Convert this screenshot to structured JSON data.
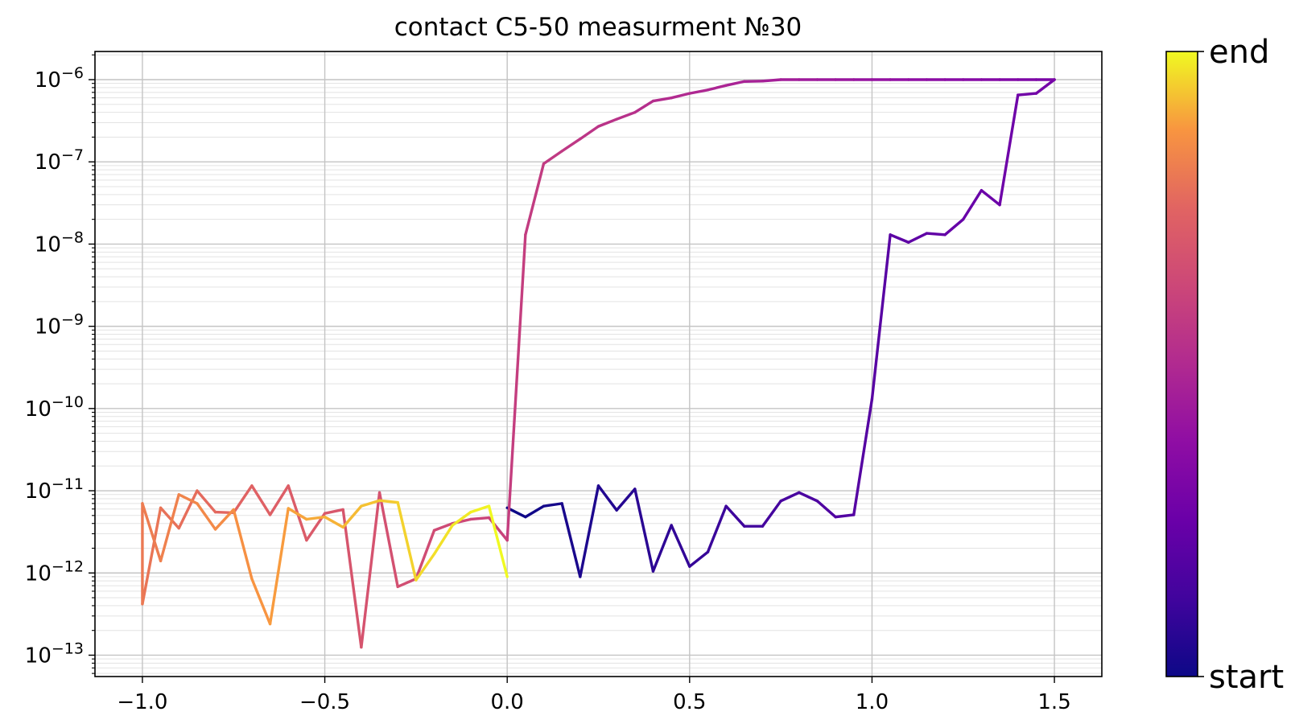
{
  "chart_data": {
    "type": "line",
    "title": "contact C5-50 measurment №30",
    "xlabel": "",
    "ylabel": "",
    "yscale": "log",
    "grid": true,
    "minor_grid": true,
    "xlim": [
      -1.13,
      1.63
    ],
    "ylim": [
      5.5e-14,
      2.2e-06
    ],
    "x_ticks": [
      {
        "value": -1.0,
        "label": "−1.0"
      },
      {
        "value": -0.5,
        "label": "−0.5"
      },
      {
        "value": 0.0,
        "label": "0.0"
      },
      {
        "value": 0.5,
        "label": "0.5"
      },
      {
        "value": 1.0,
        "label": "1.0"
      },
      {
        "value": 1.5,
        "label": "1.5"
      }
    ],
    "y_ticks": [
      {
        "exp": -6,
        "base": "10",
        "sup": "−6"
      },
      {
        "exp": -7,
        "base": "10",
        "sup": "−7"
      },
      {
        "exp": -8,
        "base": "10",
        "sup": "−8"
      },
      {
        "exp": -9,
        "base": "10",
        "sup": "−9"
      },
      {
        "exp": -10,
        "base": "10",
        "sup": "−10"
      },
      {
        "exp": -11,
        "base": "10",
        "sup": "−11"
      },
      {
        "exp": -12,
        "base": "10",
        "sup": "−12"
      },
      {
        "exp": -13,
        "base": "10",
        "sup": "−13"
      }
    ],
    "colormap": "plasma",
    "colorbar": {
      "top_label": "end",
      "bottom_label": "start"
    },
    "series": [
      {
        "x": [
          0.0,
          0.05,
          0.1,
          0.15,
          0.2,
          0.25,
          0.3,
          0.35,
          0.4,
          0.45,
          0.5,
          0.55,
          0.6,
          0.65,
          0.7,
          0.75,
          0.8,
          0.85,
          0.9,
          0.95,
          1.0,
          1.05,
          1.1,
          1.15,
          1.2,
          1.25,
          1.3,
          1.35,
          1.4,
          1.45,
          1.5
        ],
        "y": [
          6.2e-12,
          4.8e-12,
          6.5e-12,
          7e-12,
          9e-13,
          1.15e-11,
          5.8e-12,
          1.05e-11,
          1.05e-12,
          3.8e-12,
          1.2e-12,
          1.8e-12,
          6.5e-12,
          3.7e-12,
          3.7e-12,
          7.5e-12,
          9.5e-12,
          7.5e-12,
          4.8e-12,
          5.1e-12,
          1.3e-10,
          1.3e-08,
          1.05e-08,
          1.35e-08,
          1.3e-08,
          2e-08,
          4.5e-08,
          3e-08,
          6.5e-07,
          6.8e-07,
          1e-06
        ]
      },
      {
        "x": [
          1.5,
          1.45,
          1.4,
          1.35,
          1.3,
          1.25,
          1.2,
          1.15,
          1.1,
          1.05,
          1.0,
          0.95,
          0.9,
          0.85,
          0.8,
          0.75,
          0.7,
          0.65,
          0.6,
          0.55,
          0.5,
          0.45,
          0.4,
          0.35,
          0.3,
          0.25,
          0.2,
          0.15,
          0.1,
          0.05,
          0.0
        ],
        "y": [
          1e-06,
          1e-06,
          1e-06,
          1e-06,
          1e-06,
          1e-06,
          1e-06,
          1e-06,
          1e-06,
          1e-06,
          1e-06,
          1e-06,
          1e-06,
          1e-06,
          1e-06,
          1e-06,
          9.6e-07,
          9.5e-07,
          8.5e-07,
          7.5e-07,
          6.8e-07,
          6e-07,
          5.5e-07,
          4e-07,
          3.3e-07,
          2.7e-07,
          1.9e-07,
          1.35e-07,
          9.5e-08,
          1.3e-08,
          2.5e-12
        ]
      },
      {
        "x": [
          0.0,
          -0.05,
          -0.1,
          -0.15,
          -0.2,
          -0.25,
          -0.3,
          -0.35,
          -0.4,
          -0.45,
          -0.5,
          -0.55,
          -0.6,
          -0.65,
          -0.7,
          -0.75,
          -0.8,
          -0.85,
          -0.9,
          -0.95,
          -1.0
        ],
        "y": [
          2.5e-12,
          4.7e-12,
          4.5e-12,
          4e-12,
          3.3e-12,
          8.5e-13,
          6.8e-13,
          9.5e-12,
          1.25e-13,
          5.9e-12,
          5.3e-12,
          2.5e-12,
          1.15e-11,
          5.1e-12,
          1.15e-11,
          5.4e-12,
          5.5e-12,
          1e-11,
          3.5e-12,
          6.2e-12,
          4.2e-13
        ]
      },
      {
        "x": [
          -1.0,
          -0.95,
          -0.9,
          -0.85,
          -0.8,
          -0.75,
          -0.7,
          -0.65,
          -0.6,
          -0.55,
          -0.5,
          -0.45,
          -0.4,
          -0.35,
          -0.3,
          -0.25,
          -0.2,
          -0.15,
          -0.1,
          -0.05,
          0.0
        ],
        "y": [
          7e-12,
          1.4e-12,
          9e-12,
          7e-12,
          3.4e-12,
          5.9e-12,
          8.5e-13,
          2.4e-13,
          6.1e-12,
          4.5e-12,
          4.8e-12,
          3.6e-12,
          6.5e-12,
          7.6e-12,
          7.2e-12,
          8.2e-13,
          1.7e-12,
          3.8e-12,
          5.5e-12,
          6.5e-12,
          9e-13
        ]
      }
    ]
  }
}
